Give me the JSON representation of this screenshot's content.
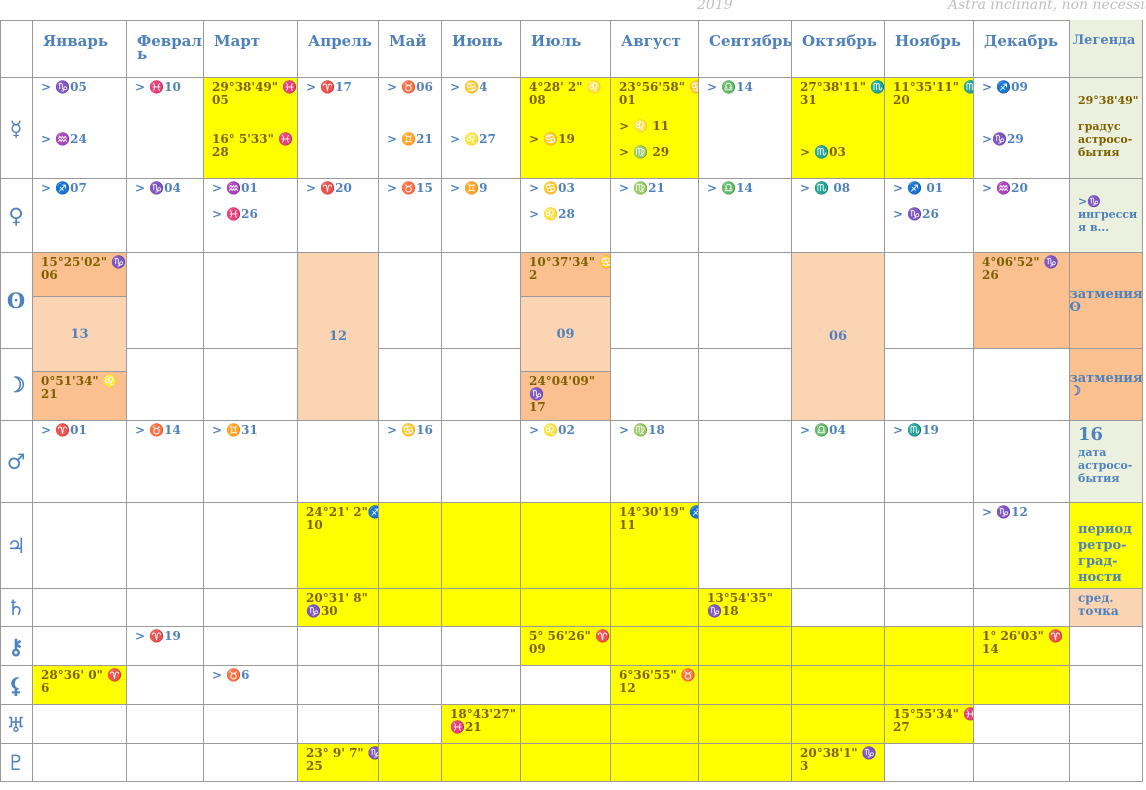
{
  "header": {
    "year": "2019",
    "motto": "Astra inclinant, non necessitant"
  },
  "months": [
    "Январь",
    "Феврал\nь",
    "Март",
    "Апрель",
    "Май",
    "Июнь",
    "Июль",
    "Август",
    "Сентябрь",
    "Октябрь",
    "Ноябрь",
    "Декабрь"
  ],
  "legend_title": "Легенда",
  "planets": [
    "☿",
    "♀",
    "ʘ",
    "☽",
    "♂",
    "♃",
    "♄",
    "⚷",
    "⚸",
    "♅",
    "♇"
  ],
  "colors": {
    "yellow": "#ffff00",
    "orange": "#fac090",
    "peach": "#fbd4b4",
    "legend": "#ebf1de",
    "text": "#4f81bd",
    "dark": "#7f6000"
  },
  "cells": [
    {
      "id": "m-jan",
      "text": "> ♑05\n\n\n\n> ♒24"
    },
    {
      "id": "m-feb",
      "text": "> ♓10"
    },
    {
      "id": "m-mar",
      "text": "29°38'49\" ♓\n05\n\n\n16° 5'33\" ♓\n28"
    },
    {
      "id": "m-apr",
      "text": "> ♈17"
    },
    {
      "id": "m-may",
      "text": "> ♉06\n\n\n\n> ♊21"
    },
    {
      "id": "m-jun",
      "text": "> ♋4\n\n\n\n> ♌27"
    },
    {
      "id": "m-jul",
      "text": "4°28' 2\" ♌\n08\n\n\n> ♋19"
    },
    {
      "id": "m-aug",
      "text": "23°56'58\" ♋\n01\n\n> ♌ 11\n\n> ♍ 29"
    },
    {
      "id": "m-sep",
      "text": "> ♎14"
    },
    {
      "id": "m-oct",
      "text": "27°38'11\" ♏\n31\n\n\n\n> ♏03"
    },
    {
      "id": "m-nov",
      "text": "11°35'11\" ♏\n20"
    },
    {
      "id": "m-dec",
      "text": "> ♐09\n\n\n\n>♑29"
    },
    {
      "id": "m-leg",
      "text": "\n29°38'49\"\n\nградус\nастросо-\nбытия"
    },
    {
      "id": "v-jan",
      "text": "> ♐07"
    },
    {
      "id": "v-feb",
      "text": "> ♑04"
    },
    {
      "id": "v-mar",
      "text": "> ♒01\n\n> ♓26"
    },
    {
      "id": "v-apr",
      "text": "> ♈20"
    },
    {
      "id": "v-may",
      "text": "> ♉15"
    },
    {
      "id": "v-jun",
      "text": "> ♊9"
    },
    {
      "id": "v-jul",
      "text": "> ♋03\n\n> ♌28"
    },
    {
      "id": "v-aug",
      "text": "> ♍21"
    },
    {
      "id": "v-sep",
      "text": "> ♎14"
    },
    {
      "id": "v-oct",
      "text": "> ♏ 08"
    },
    {
      "id": "v-nov",
      "text": "> ♐ 01\n\n> ♑26"
    },
    {
      "id": "v-dec",
      "text": "> ♒20"
    },
    {
      "id": "v-leg",
      "text": "\n>♑\nингресси\nя в..."
    },
    {
      "id": "s-jan",
      "text": "15°25'02\" ♑\n06"
    },
    {
      "id": "s-jul",
      "text": "10°37'34\" ♋\n2"
    },
    {
      "id": "s-dec",
      "text": "4°06'52\" ♑\n26"
    },
    {
      "id": "s-leg",
      "text": "затмения\nʘ"
    },
    {
      "id": "e-jan",
      "text": "13"
    },
    {
      "id": "e-apr",
      "text": "12"
    },
    {
      "id": "e-jul",
      "text": "09"
    },
    {
      "id": "e-oct",
      "text": "06"
    },
    {
      "id": "l-jan",
      "text": "0°51'34\" ♌\n21"
    },
    {
      "id": "l-jul",
      "text": "24°04'09\"\n♑\n17"
    },
    {
      "id": "l-leg",
      "text": "затмения\n☽"
    },
    {
      "id": "a-jan",
      "text": "> ♈01"
    },
    {
      "id": "a-feb",
      "text": "> ♉14"
    },
    {
      "id": "a-mar",
      "text": "> ♊31"
    },
    {
      "id": "a-may",
      "text": "> ♋16"
    },
    {
      "id": "a-jul",
      "text": "> ♌02"
    },
    {
      "id": "a-aug",
      "text": "> ♍18"
    },
    {
      "id": "a-oct",
      "text": "> ♎04"
    },
    {
      "id": "a-nov",
      "text": "> ♏19"
    },
    {
      "id": "a-leg",
      "text": "16\nдата\nастросо-\nбытия"
    },
    {
      "id": "j-apr",
      "text": "24°21' 2\"♐\n10"
    },
    {
      "id": "j-aug",
      "text": "14°30'19\" ♐\n11"
    },
    {
      "id": "j-dec",
      "text": "> ♑12"
    },
    {
      "id": "j-leg",
      "text": "\nпериод\nретро-\nград-\nности"
    },
    {
      "id": "st-apr",
      "text": "20°31' 8\"\n♑30"
    },
    {
      "id": "st-sep",
      "text": "13°54'35\"\n♑18"
    },
    {
      "id": "st-leg",
      "text": "сред.\nточка"
    },
    {
      "id": "c-feb",
      "text": "> ♈19"
    },
    {
      "id": "c-jul",
      "text": "5° 56'26\" ♈\n09"
    },
    {
      "id": "c-dec",
      "text": "1° 26'03\" ♈\n14"
    },
    {
      "id": "n-jan",
      "text": "28°36' 0\" ♈\n6"
    },
    {
      "id": "n-mar",
      "text": "> ♉6"
    },
    {
      "id": "n-aug",
      "text": "6°36'55\" ♉\n12"
    },
    {
      "id": "u-jun",
      "text": "18°43'27\"\n♓21"
    },
    {
      "id": "u-nov",
      "text": "15°55'34\" ♓\n27"
    },
    {
      "id": "pl-apr",
      "text": "23° 9' 7\" ♑\n25"
    },
    {
      "id": "pl-oct",
      "text": "20°38'1\" ♑\n3"
    }
  ]
}
